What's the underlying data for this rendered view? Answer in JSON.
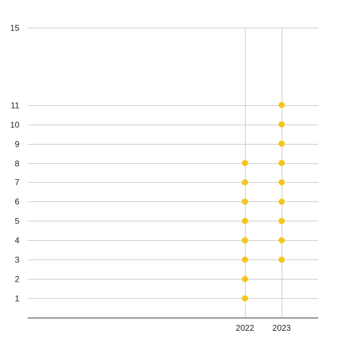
{
  "chart_data": {
    "type": "scatter",
    "title": "",
    "xlabel": "",
    "ylabel": "",
    "x_ticks": [
      "2022",
      "2023"
    ],
    "y_ticks": [
      1,
      2,
      3,
      4,
      5,
      6,
      7,
      8,
      9,
      10,
      11,
      15
    ],
    "ylim": [
      0,
      15
    ],
    "grid": true,
    "legend": "none",
    "series": [
      {
        "color": "#f5c518",
        "points": [
          {
            "x": "2022",
            "y": 1
          },
          {
            "x": "2022",
            "y": 2
          },
          {
            "x": "2022",
            "y": 3
          },
          {
            "x": "2022",
            "y": 4
          },
          {
            "x": "2022",
            "y": 5
          },
          {
            "x": "2022",
            "y": 6
          },
          {
            "x": "2022",
            "y": 7
          },
          {
            "x": "2022",
            "y": 8
          },
          {
            "x": "2023",
            "y": 3
          },
          {
            "x": "2023",
            "y": 4
          },
          {
            "x": "2023",
            "y": 5
          },
          {
            "x": "2023",
            "y": 6
          },
          {
            "x": "2023",
            "y": 7
          },
          {
            "x": "2023",
            "y": 8
          },
          {
            "x": "2023",
            "y": 9
          },
          {
            "x": "2023",
            "y": 10
          },
          {
            "x": "2023",
            "y": 11
          }
        ]
      }
    ],
    "colors": {
      "grid": "#cccccc",
      "axis": "#333333",
      "text": "#222222"
    }
  }
}
